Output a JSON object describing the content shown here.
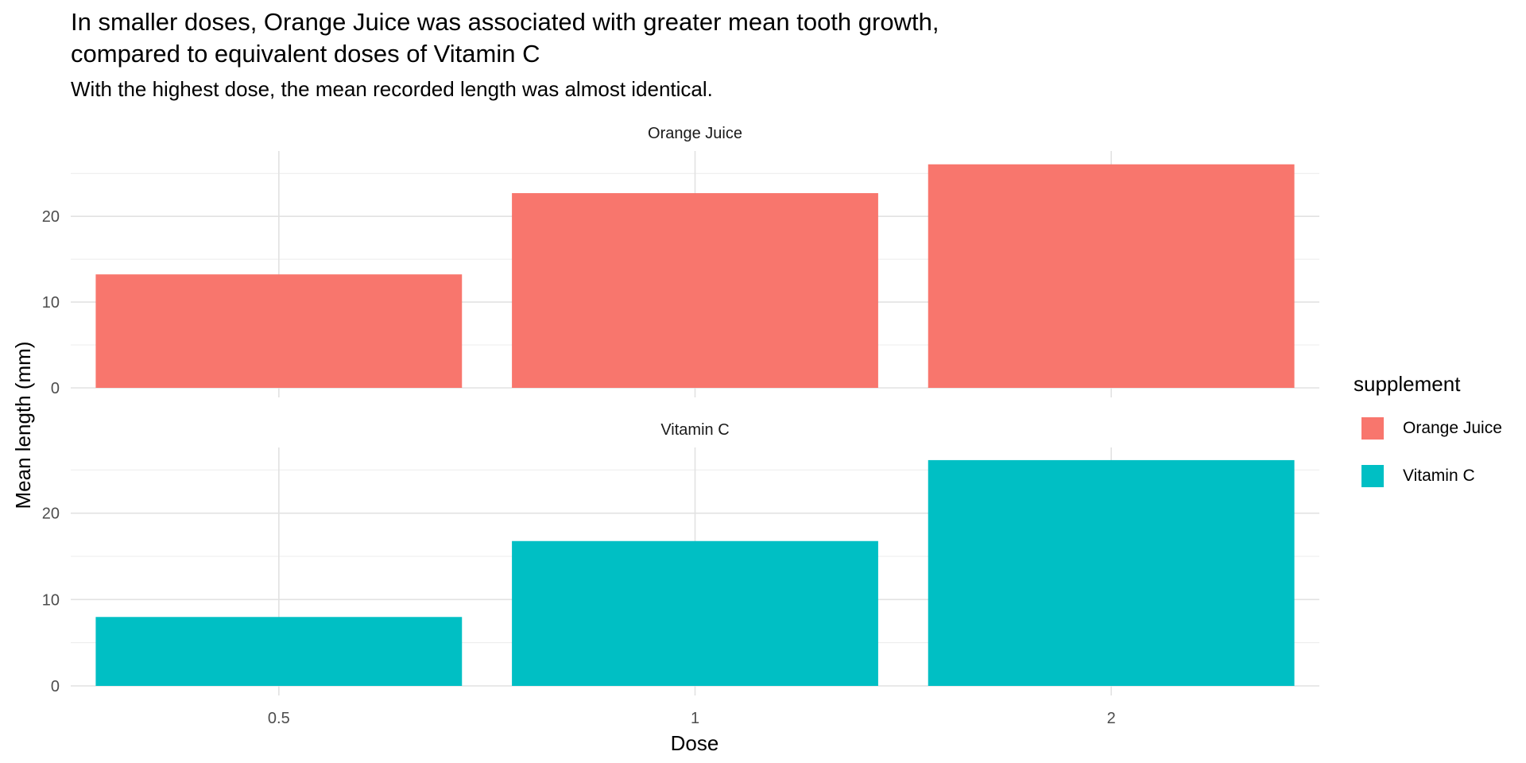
{
  "chart_data": {
    "type": "bar",
    "title": "In smaller doses, Orange Juice was associated with greater mean tooth growth,\ncompared to equivalent doses of Vitamin C",
    "subtitle": "With the highest dose, the mean recorded length was almost identical.",
    "xlabel": "Dose",
    "ylabel": "Mean length (mm)",
    "categories": [
      "0.5",
      "1",
      "2"
    ],
    "ylim": [
      0,
      26.5
    ],
    "yticks": [
      0,
      10,
      20
    ],
    "grid": true,
    "facets": [
      {
        "label": "Orange Juice",
        "series": "Orange Juice",
        "values": [
          13.23,
          22.7,
          26.06
        ],
        "color": "#F8766D"
      },
      {
        "label": "Vitamin C",
        "series": "Vitamin C",
        "values": [
          7.98,
          16.77,
          26.14
        ],
        "color": "#00BFC4"
      }
    ],
    "legend": {
      "title": "supplement",
      "position": "right",
      "items": [
        {
          "label": "Orange Juice",
          "color": "#F8766D"
        },
        {
          "label": "Vitamin C",
          "color": "#00BFC4"
        }
      ]
    }
  }
}
